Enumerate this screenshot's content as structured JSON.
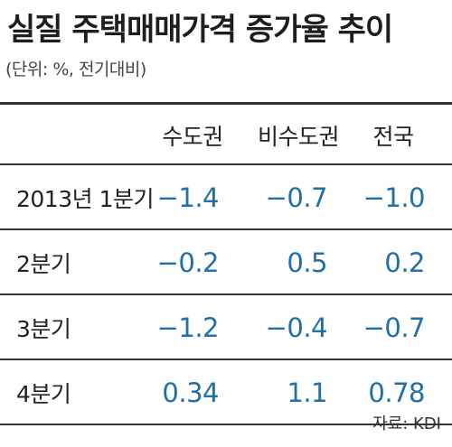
{
  "title": "실질 주택매매가격 증가율 추이",
  "subtitle": "(단위: %, 전기대비)",
  "table": {
    "columns": [
      "수도권",
      "비수도권",
      "전국"
    ],
    "rows": [
      {
        "label": "2013년 1분기",
        "values": [
          "−1.4",
          "−0.7",
          "−1.0"
        ]
      },
      {
        "label": "2분기",
        "values": [
          "−0.2",
          "0.5",
          "0.2"
        ]
      },
      {
        "label": "3분기",
        "values": [
          "−1.2",
          "−0.4",
          "−0.7"
        ]
      },
      {
        "label": "4분기",
        "values": [
          "0.34",
          "1.1",
          "0.78"
        ]
      }
    ]
  },
  "source": "자료: KDI",
  "colors": {
    "value_text": "#1f6fa8",
    "rule": "#333333"
  }
}
